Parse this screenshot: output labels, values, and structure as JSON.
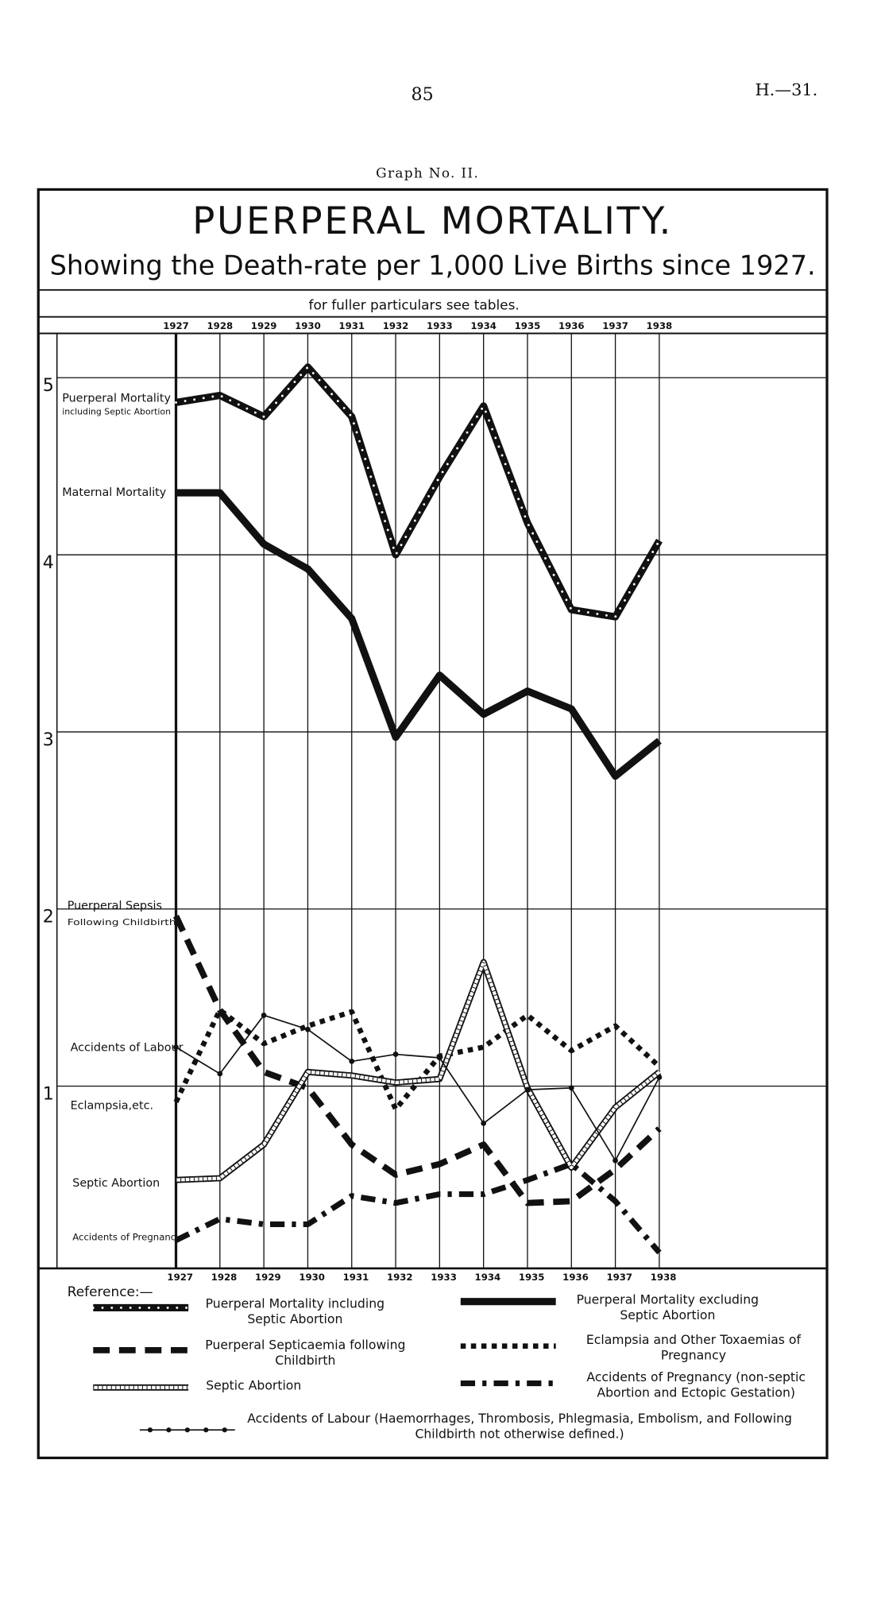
{
  "page_number": "85",
  "header_right": "H.—31.",
  "graph_label": "Graph No. II.",
  "chart_data": {
    "type": "line",
    "title": "PUERPERAL MORTALITY.",
    "subtitle": "Showing the Death-rate per 1,000 Live Births since 1927.",
    "note": "for fuller particulars see tables.",
    "legend_title": "Reference:—",
    "categories": [
      "1927",
      "1928",
      "1929",
      "1930",
      "1931",
      "1932",
      "1933",
      "1934",
      "1935",
      "1936",
      "1937",
      "1938"
    ],
    "ylim": [
      0,
      5.25
    ],
    "yticks": [
      1,
      2,
      3,
      4,
      5
    ],
    "grid": true,
    "annotations": [
      "Puerperal Mortality",
      "including Septic Abortion",
      "Maternal Mortality",
      "Puerperal Sepsis",
      "Following Childbirth",
      "Accidents of Labour",
      "Eclampsia,etc.",
      "Septic Abortion",
      "Accidents of Pregnancy"
    ],
    "series": [
      {
        "name": "Puerperal Mortality including Septic Abortion",
        "color": "#111111",
        "style": "dotted-solid",
        "values": [
          4.86,
          4.9,
          4.78,
          5.06,
          4.78,
          4.0,
          4.44,
          4.84,
          4.18,
          3.69,
          3.65,
          4.08
        ]
      },
      {
        "name": "Puerperal Mortality excluding Septic Abortion",
        "color": "#111111",
        "style": "solid",
        "values": [
          4.35,
          4.35,
          4.06,
          3.92,
          3.64,
          2.97,
          3.32,
          3.1,
          3.23,
          3.13,
          2.75,
          2.95
        ]
      },
      {
        "name": "Puerperal Septicaemia following Childbirth",
        "color": "#111111",
        "style": "dashed",
        "values": [
          1.96,
          1.43,
          1.08,
          0.99,
          0.67,
          0.5,
          0.56,
          0.67,
          0.34,
          0.35,
          0.53,
          0.76
        ]
      },
      {
        "name": "Eclampsia and Other Toxaemias of Pregnancy",
        "color": "#111111",
        "style": "dotted",
        "values": [
          0.91,
          1.43,
          1.24,
          1.34,
          1.42,
          0.87,
          1.17,
          1.22,
          1.4,
          1.2,
          1.34,
          1.11
        ]
      },
      {
        "name": "Septic Abortion",
        "color": "#111111",
        "style": "double",
        "values": [
          0.47,
          0.48,
          0.67,
          1.08,
          1.06,
          1.02,
          1.04,
          1.7,
          0.99,
          0.54,
          0.88,
          1.08
        ]
      },
      {
        "name": "Accidents of Pregnancy (non-septic Abortion and Ectopic Gestation)",
        "color": "#111111",
        "style": "dash-dot",
        "values": [
          0.13,
          0.25,
          0.22,
          0.22,
          0.38,
          0.34,
          0.39,
          0.39,
          0.47,
          0.56,
          0.35,
          0.06
        ]
      },
      {
        "name": "Accidents of Labour (Haemorrhages, Thrombosis, Phlegmasia, Embolism, and Following Childbirth not otherwise defined.)",
        "color": "#111111",
        "style": "dot-line",
        "values": [
          1.22,
          1.07,
          1.4,
          1.32,
          1.14,
          1.18,
          1.16,
          0.79,
          0.98,
          0.99,
          0.58,
          1.05
        ]
      }
    ]
  }
}
